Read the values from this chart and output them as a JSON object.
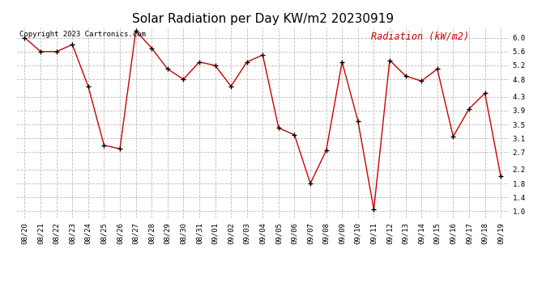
{
  "title": "Solar Radiation per Day KW/m2 20230919",
  "copyright_text": "Copyright 2023 Cartronics.com",
  "legend_label": "Radiation (kW/m2)",
  "dates": [
    "08/20",
    "08/21",
    "08/22",
    "08/23",
    "08/24",
    "08/25",
    "08/26",
    "08/27",
    "08/28",
    "08/29",
    "08/30",
    "08/31",
    "09/01",
    "09/02",
    "09/03",
    "09/04",
    "09/05",
    "09/06",
    "09/07",
    "09/08",
    "09/09",
    "09/10",
    "09/11",
    "09/12",
    "09/13",
    "09/14",
    "09/15",
    "09/16",
    "09/17",
    "09/18",
    "09/19"
  ],
  "values": [
    6.0,
    5.6,
    5.6,
    5.8,
    4.6,
    2.9,
    2.8,
    6.2,
    5.7,
    5.1,
    4.8,
    5.3,
    5.2,
    4.6,
    5.3,
    5.5,
    3.4,
    3.2,
    1.8,
    2.75,
    5.3,
    3.6,
    1.05,
    5.35,
    4.9,
    4.75,
    5.1,
    3.15,
    3.95,
    4.4,
    2.0
  ],
  "line_color": "#cc0000",
  "marker_color": "#000000",
  "background_color": "#ffffff",
  "grid_color": "#bbbbbb",
  "ylim": [
    0.8,
    6.3
  ],
  "yticks": [
    1.0,
    1.4,
    1.8,
    2.2,
    2.7,
    3.1,
    3.5,
    3.9,
    4.3,
    4.8,
    5.2,
    5.6,
    6.0
  ],
  "title_fontsize": 11,
  "copyright_fontsize": 6.5,
  "legend_fontsize": 8.5,
  "tick_fontsize": 6.5
}
